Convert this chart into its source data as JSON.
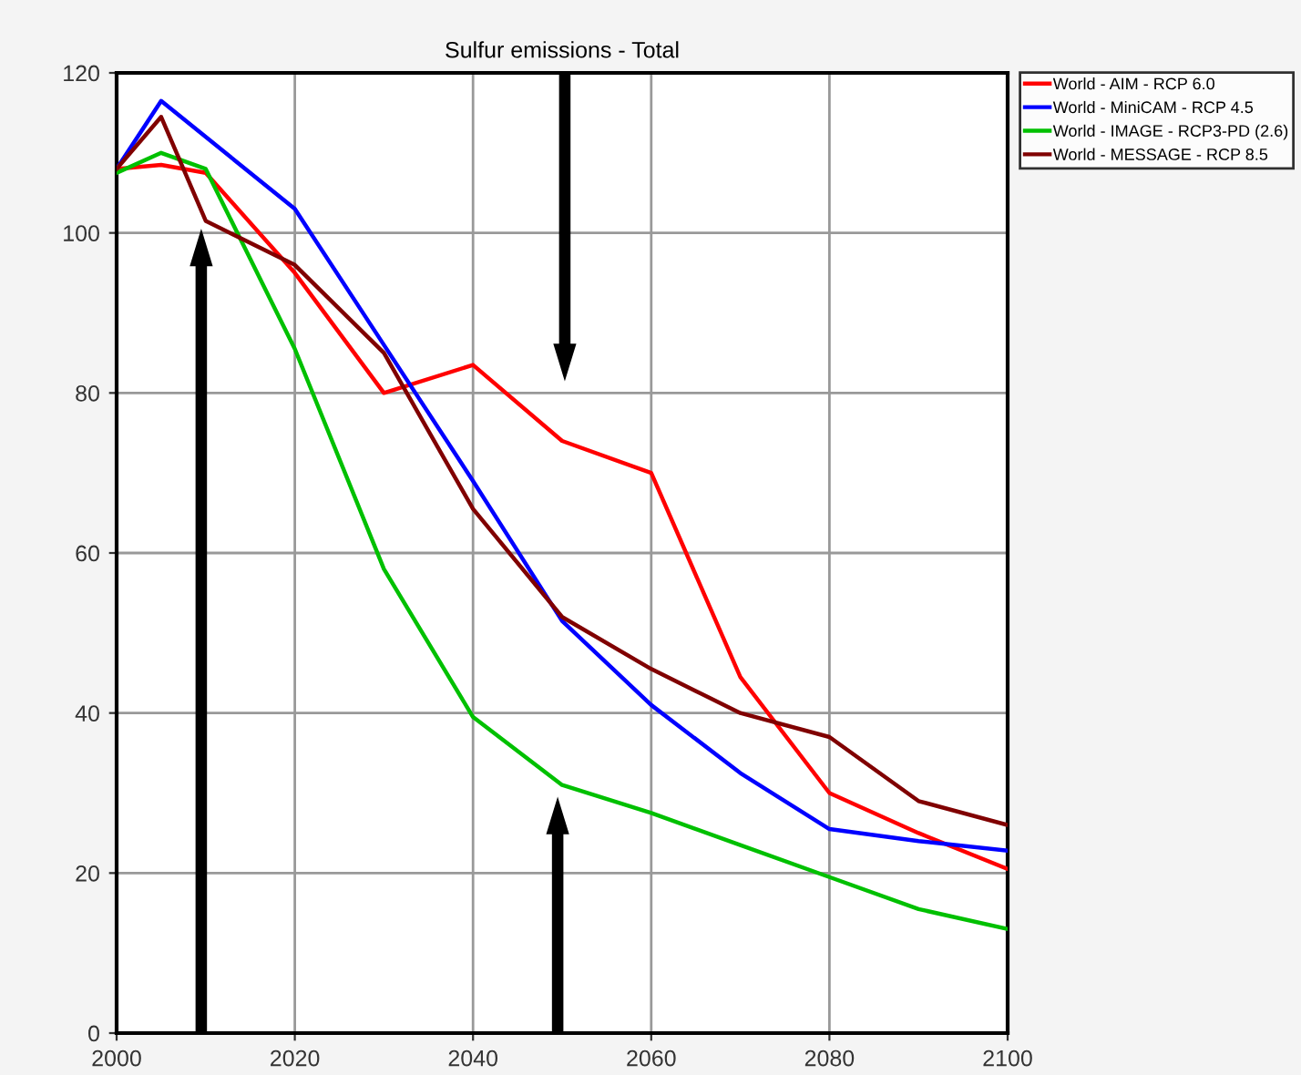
{
  "chart_data": {
    "type": "line",
    "title": "Sulfur emissions - Total",
    "x": [
      2000,
      2005,
      2010,
      2020,
      2030,
      2040,
      2050,
      2060,
      2070,
      2080,
      2090,
      2100
    ],
    "series": [
      {
        "name": "World - AIM - RCP 6.0",
        "color": "#ff0000",
        "values": [
          108,
          108.5,
          107.5,
          95,
          80,
          83.5,
          74,
          70,
          44.5,
          30,
          25,
          20.5
        ]
      },
      {
        "name": "World - MiniCAM - RCP 4.5",
        "color": "#0000ff",
        "x": [
          2000,
          2005,
          2020,
          2030,
          2040,
          2050,
          2060,
          2070,
          2080,
          2090,
          2100
        ],
        "values": [
          108,
          116.5,
          103,
          86,
          69,
          51.5,
          41,
          32.5,
          25.5,
          24,
          22.8
        ]
      },
      {
        "name": "World - IMAGE - RCP3-PD (2.6)",
        "color": "#00c000",
        "values": [
          107.5,
          110,
          108,
          85.5,
          58,
          39.5,
          31,
          27.5,
          23.5,
          19.5,
          15.5,
          13
        ]
      },
      {
        "name": "World - MESSAGE - RCP 8.5",
        "color": "#800000",
        "values": [
          108,
          114.5,
          101.5,
          96,
          85,
          65.5,
          52,
          45.5,
          40,
          37,
          29,
          26
        ]
      }
    ],
    "xlim": [
      2000,
      2100
    ],
    "xticks": [
      2000,
      2020,
      2040,
      2060,
      2080,
      2100
    ],
    "ylim": [
      0,
      120
    ],
    "yticks": [
      0,
      20,
      40,
      60,
      80,
      100,
      120
    ],
    "grid": true,
    "legend": "top right",
    "marker": "none",
    "line_style": "solid"
  }
}
